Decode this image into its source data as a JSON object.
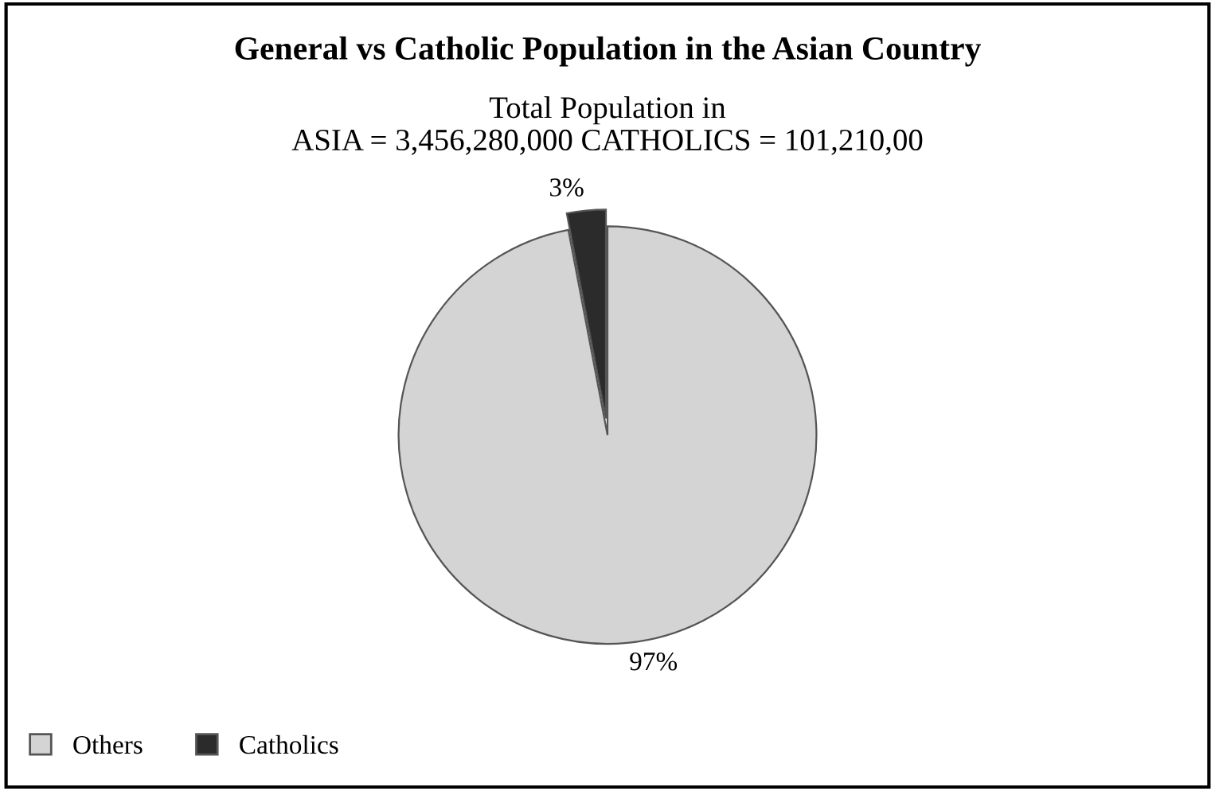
{
  "chart_data": {
    "type": "pie",
    "title": "General vs Catholic Population in the Asian Country",
    "subtitle": "Total Population in\nASIA = 3,456,280,000 CATHOLICS = 101,210,00",
    "categories": [
      "Others",
      "Catholics"
    ],
    "values": [
      97,
      3
    ],
    "value_labels": [
      "97%",
      "3%"
    ],
    "colors": [
      "#d4d4d4",
      "#2b2b2b"
    ],
    "legend": "bottom left"
  }
}
